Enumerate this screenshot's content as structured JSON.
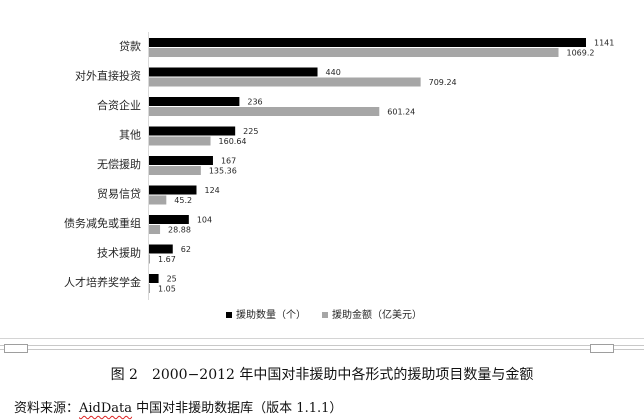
{
  "chart_data": {
    "type": "bar",
    "orientation": "horizontal",
    "categories": [
      "贷款",
      "对外直接投资",
      "合资企业",
      "其他",
      "无偿援助",
      "贸易信贷",
      "债务减免或重组",
      "技术援助",
      "人才培养奖学金"
    ],
    "series": [
      {
        "name": "援助数量（个）",
        "values": [
          1141,
          440,
          236,
          225,
          167,
          124,
          104,
          62,
          25
        ],
        "labels": [
          "1141",
          "440",
          "236",
          "225",
          "167",
          "124",
          "104",
          "62",
          "25"
        ],
        "color": "#000000"
      },
      {
        "name": "援助金额（亿美元）",
        "values": [
          1069.2,
          709.24,
          601.24,
          160.64,
          135.36,
          45.2,
          28.88,
          1.67,
          1.05
        ],
        "labels": [
          "1069.2",
          "709.24",
          "601.24",
          "160.64",
          "135.36",
          "45.2",
          "28.88",
          "1.67",
          "1.05"
        ],
        "color": "#a6a6a6"
      }
    ],
    "xlim": [
      0,
      1141
    ],
    "grid": false,
    "legend_position": "bottom"
  },
  "caption": "图 2　2000−2012 年中国对非援助中各形式的援助项目数量与金额",
  "source": {
    "prefix": "资料来源：",
    "db": "AidData",
    "rest": " 中国对非援助数据库（版本 1.1.1）"
  }
}
